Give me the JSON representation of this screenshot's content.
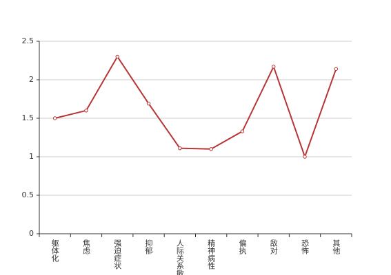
{
  "chart_data": {
    "type": "line",
    "categories": [
      "躯体化",
      "焦虑",
      "强迫症状",
      "抑郁",
      "人际关系敏感",
      "精神病性",
      "偏执",
      "敌对",
      "恐怖",
      "其他"
    ],
    "values": [
      1.5,
      1.6,
      2.3,
      1.69,
      1.11,
      1.1,
      1.33,
      2.17,
      1.0,
      2.14
    ],
    "color": "#b83535",
    "ylim": [
      0,
      2.5
    ],
    "yticks": [
      0,
      0.5,
      1,
      1.5,
      2,
      2.5
    ],
    "grid": true
  }
}
